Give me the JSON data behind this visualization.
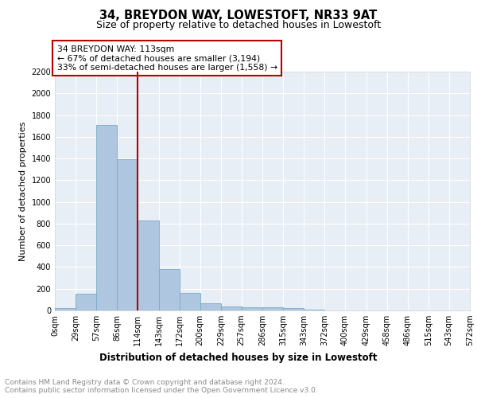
{
  "title": "34, BREYDON WAY, LOWESTOFT, NR33 9AT",
  "subtitle": "Size of property relative to detached houses in Lowestoft",
  "xlabel": "Distribution of detached houses by size in Lowestoft",
  "ylabel": "Number of detached properties",
  "bar_color": "#aec6df",
  "bar_edge_color": "#7aabc8",
  "background_color": "#e8eef5",
  "grid_color": "#ffffff",
  "bin_edges": [
    0,
    29,
    57,
    86,
    114,
    143,
    172,
    200,
    229,
    257,
    286,
    315,
    343,
    372,
    400,
    429,
    458,
    486,
    515,
    543,
    572
  ],
  "bin_labels": [
    "0sqm",
    "29sqm",
    "57sqm",
    "86sqm",
    "114sqm",
    "143sqm",
    "172sqm",
    "200sqm",
    "229sqm",
    "257sqm",
    "286sqm",
    "315sqm",
    "343sqm",
    "372sqm",
    "400sqm",
    "429sqm",
    "458sqm",
    "486sqm",
    "515sqm",
    "543sqm",
    "572sqm"
  ],
  "bar_values": [
    20,
    155,
    1710,
    1395,
    830,
    380,
    165,
    65,
    35,
    30,
    30,
    25,
    10,
    0,
    0,
    0,
    0,
    0,
    0,
    0
  ],
  "vline_x": 114,
  "vline_color": "#bb0000",
  "annotation_line1": "34 BREYDON WAY: 113sqm",
  "annotation_line2": "← 67% of detached houses are smaller (3,194)",
  "annotation_line3": "33% of semi-detached houses are larger (1,558) →",
  "annotation_box_color": "#bb0000",
  "ylim": [
    0,
    2200
  ],
  "yticks": [
    0,
    200,
    400,
    600,
    800,
    1000,
    1200,
    1400,
    1600,
    1800,
    2000,
    2200
  ],
  "footer_line1": "Contains HM Land Registry data © Crown copyright and database right 2024.",
  "footer_line2": "Contains public sector information licensed under the Open Government Licence v3.0.",
  "title_fontsize": 10.5,
  "subtitle_fontsize": 9,
  "xlabel_fontsize": 8.5,
  "ylabel_fontsize": 8,
  "tick_fontsize": 7,
  "annotation_fontsize": 7.8,
  "footer_fontsize": 6.5
}
